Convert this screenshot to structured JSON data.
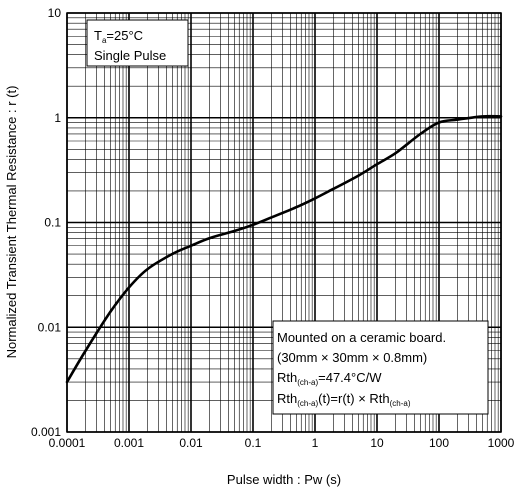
{
  "chart_data": {
    "type": "line",
    "title": "",
    "xlabel": "Pulse width : Pw (s)",
    "ylabel": "Normalized Transient Thermal Resistance : r (t)",
    "xscale": "log",
    "yscale": "log",
    "xlim": [
      0.0001,
      1000
    ],
    "ylim": [
      0.001,
      10
    ],
    "grid": true,
    "x_tick_labels": [
      "0.0001",
      "0.001",
      "0.01",
      "0.1",
      "1",
      "10",
      "100",
      "1000"
    ],
    "y_tick_labels": [
      "0.001",
      "0.01",
      "0.1",
      "1",
      "10"
    ],
    "series": [
      {
        "name": "",
        "color": "#000000",
        "x": [
          0.0001,
          0.0002,
          0.0005,
          0.001,
          0.002,
          0.005,
          0.01,
          0.02,
          0.05,
          0.1,
          0.2,
          0.5,
          1,
          2,
          5,
          10,
          20,
          50,
          100,
          200,
          500,
          1000
        ],
        "y": [
          0.003,
          0.006,
          0.014,
          0.024,
          0.036,
          0.05,
          0.06,
          0.071,
          0.083,
          0.095,
          0.112,
          0.14,
          0.17,
          0.21,
          0.28,
          0.36,
          0.46,
          0.7,
          0.9,
          0.96,
          1.03,
          1.03
        ]
      }
    ],
    "annotations": {
      "conditions": {
        "ta_main": "T",
        "ta_sub": "a",
        "ta_rest": "=25°C",
        "pulse": "Single Pulse"
      },
      "board": {
        "line1": "Mounted on a ceramic board.",
        "line2": "(30mm × 30mm × 0.8mm)",
        "rth_main": "Rth",
        "rth_sub": "(ch-a)",
        "rth_value": "=47.4°C/W",
        "eq_main": "Rth",
        "eq_sub": "(ch-a)",
        "eq_mid": "(t)=r(t) × Rth",
        "eq_sub2": "(ch-a)"
      }
    }
  }
}
